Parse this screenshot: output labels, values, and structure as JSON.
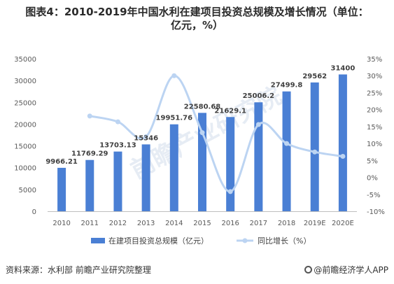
{
  "title_lines": [
    "图表4：2010-2019年中国水利在建项目投资总规模及增长情况（单位：",
    "亿元，%）"
  ],
  "source_text": "资料来源：水利部 前瞻产业研究院整理",
  "brand_text": "@前瞻经济学人APP",
  "watermark": "前瞻产业研究院",
  "colors": {
    "bar": "#4a7fd4",
    "line": "#bcd4f2",
    "axis_text": "#595959",
    "label": "#404040"
  },
  "chart_data": {
    "type": "bar",
    "categories": [
      "2010",
      "2011",
      "2012",
      "2013",
      "2014",
      "2015",
      "2016",
      "2017",
      "2018",
      "2019E",
      "2020E"
    ],
    "series": [
      {
        "name": "在建项目投资总规模（亿元）",
        "type": "bar",
        "axis": "left",
        "values": [
          9966.21,
          11769.29,
          13703.13,
          15346,
          19951.76,
          22580.68,
          21629.1,
          25006.2,
          27499.8,
          29562,
          31400
        ],
        "labels": [
          "9966.21",
          "11769.29",
          "13703.13",
          "15346",
          "19951.76",
          "22580.68",
          "21629.1",
          "25006.2",
          "27499.8",
          "29562",
          "31400"
        ]
      },
      {
        "name": "同比增长（%）",
        "type": "line",
        "axis": "right",
        "smooth": true,
        "values": [
          null,
          18.1,
          16.4,
          12.0,
          30.0,
          13.2,
          -4.2,
          15.6,
          10.0,
          7.5,
          6.2
        ]
      }
    ],
    "y_left": {
      "min": 0,
      "max": 35000,
      "ticks": [
        "0",
        "5000",
        "10000",
        "15000",
        "20000",
        "25000",
        "30000",
        "35000"
      ]
    },
    "y_right": {
      "min": -10,
      "max": 35,
      "ticks": [
        "-10%",
        "-5%",
        "0%",
        "5%",
        "10%",
        "15%",
        "20%",
        "25%",
        "30%",
        "35%"
      ]
    },
    "legend_position": "bottom",
    "grid": false
  }
}
